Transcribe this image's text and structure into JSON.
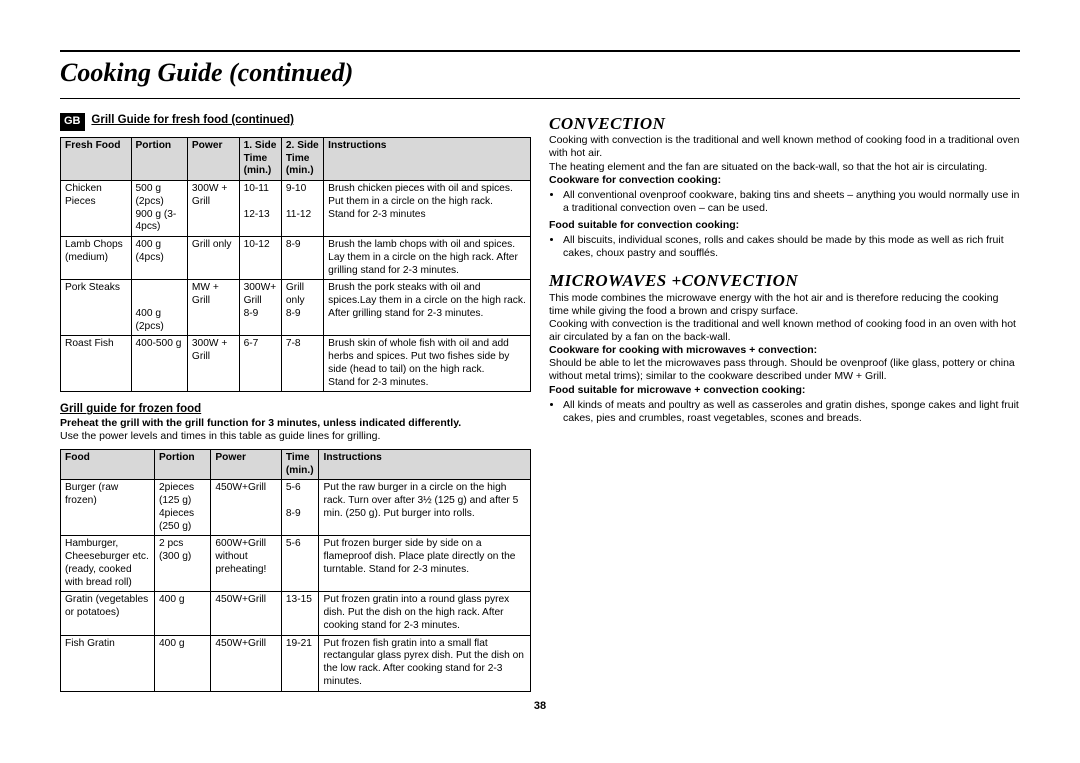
{
  "page_title": "Cooking Guide (continued)",
  "gb": "GB",
  "left": {
    "h1": "Grill Guide for fresh food (continued)",
    "t1_head": [
      "Fresh Food",
      "Portion",
      "Power",
      "1. Side Time (min.)",
      "2. Side Time (min.)",
      "Instructions"
    ],
    "t1_rows": [
      [
        "Chicken Pieces",
        "500 g (2pcs)\n900 g (3-4pcs)",
        "300W + Grill",
        "10-11\n\n12-13",
        "9-10\n\n11-12",
        "Brush chicken pieces with oil and spices. Put them in a circle on the high rack.\nStand for 2-3 minutes"
      ],
      [
        "Lamb Chops (medium)",
        "400 g (4pcs)",
        "Grill only",
        "10-12",
        "8-9",
        "Brush the lamb chops with oil and spices. Lay them in a circle on the high rack. After grilling stand for 2-3 minutes."
      ],
      [
        "Pork Steaks",
        "\n\n400 g (2pcs)",
        "MW + Grill",
        "300W+ Grill\n8-9",
        "Grill only\n8-9",
        "Brush the pork steaks with oil and spices.Lay them in a circle on the high rack. After grilling stand for 2-3 minutes."
      ],
      [
        "Roast Fish",
        "400-500 g",
        "300W + Grill",
        "6-7",
        "7-8",
        "Brush skin of whole fish with oil and add herbs and spices. Put two fishes side by side (head to tail) on the high rack.\nStand for 2-3 minutes."
      ]
    ],
    "h2": "Grill guide for frozen food",
    "preheat": "Preheat the grill with the grill function for 3 minutes, unless indicated differently.",
    "note": "Use the power levels and times in this table as guide lines for grilling.",
    "t2_head": [
      "Food",
      "Portion",
      "Power",
      "Time (min.)",
      "Instructions"
    ],
    "t2_rows": [
      [
        "Burger (raw frozen)",
        "2pieces (125 g)\n4pieces (250 g)",
        "450W+Grill",
        "5-6\n\n8-9",
        "Put the raw burger in a circle on the high rack. Turn over after 3½ (125 g) and after 5 min. (250 g). Put burger into rolls."
      ],
      [
        "Hamburger, Cheeseburger etc.\n(ready, cooked with bread roll)",
        "2 pcs (300 g)",
        "600W+Grill without preheating!",
        "5-6",
        "Put frozen burger side by side on a flameproof dish. Place plate directly on the turntable. Stand for 2-3 minutes."
      ],
      [
        "Gratin (vegetables or potatoes)",
        "400 g",
        "450W+Grill",
        "13-15",
        "Put frozen gratin into a round glass pyrex dish. Put the dish on the high rack. After cooking stand for 2-3 minutes."
      ],
      [
        "Fish Gratin",
        "400 g",
        "450W+Grill",
        "19-21",
        "Put frozen fish gratin into a small flat rectangular glass pyrex dish. Put the dish on the low rack. After cooking stand for 2-3 minutes."
      ]
    ]
  },
  "right": {
    "conv_title": "CONVECTION",
    "conv_p1": "Cooking with convection is the traditional and well known method of cooking food in a traditional oven with hot air.",
    "conv_p2": "The heating element and the fan are situated on the back-wall, so that the hot air is circulating.",
    "conv_h1": "Cookware for convection cooking:",
    "conv_b1": "All conventional ovenproof cookware, baking tins and sheets – anything you would normally use in a traditional convection oven – can be used.",
    "conv_h2": "Food suitable for convection cooking:",
    "conv_b2": "All biscuits, individual scones, rolls and cakes should be made by this mode as well as rich fruit cakes, choux pastry and soufflés.",
    "mw_title": "MICROWAVES +CONVECTION",
    "mw_p1": "This mode combines the microwave energy with the hot air and is therefore reducing the cooking time while giving the food a brown and crispy surface.",
    "mw_p2": "Cooking with convection is the traditional and well known method of cooking food in an oven with hot air circulated by a fan on the back-wall.",
    "mw_h1": "Cookware for cooking with microwaves + convection:",
    "mw_b1": "Should be able to let the microwaves pass through. Should be ovenproof (like glass, pottery or china without metal trims); similar to the cookware described under MW + Grill.",
    "mw_h2": "Food suitable for microwave + convection cooking:",
    "mw_b2": "All kinds of meats and poultry as well as casseroles and gratin dishes, sponge cakes and light fruit cakes, pies and crumbles, roast vegetables, scones and breads."
  },
  "page_number": "38"
}
